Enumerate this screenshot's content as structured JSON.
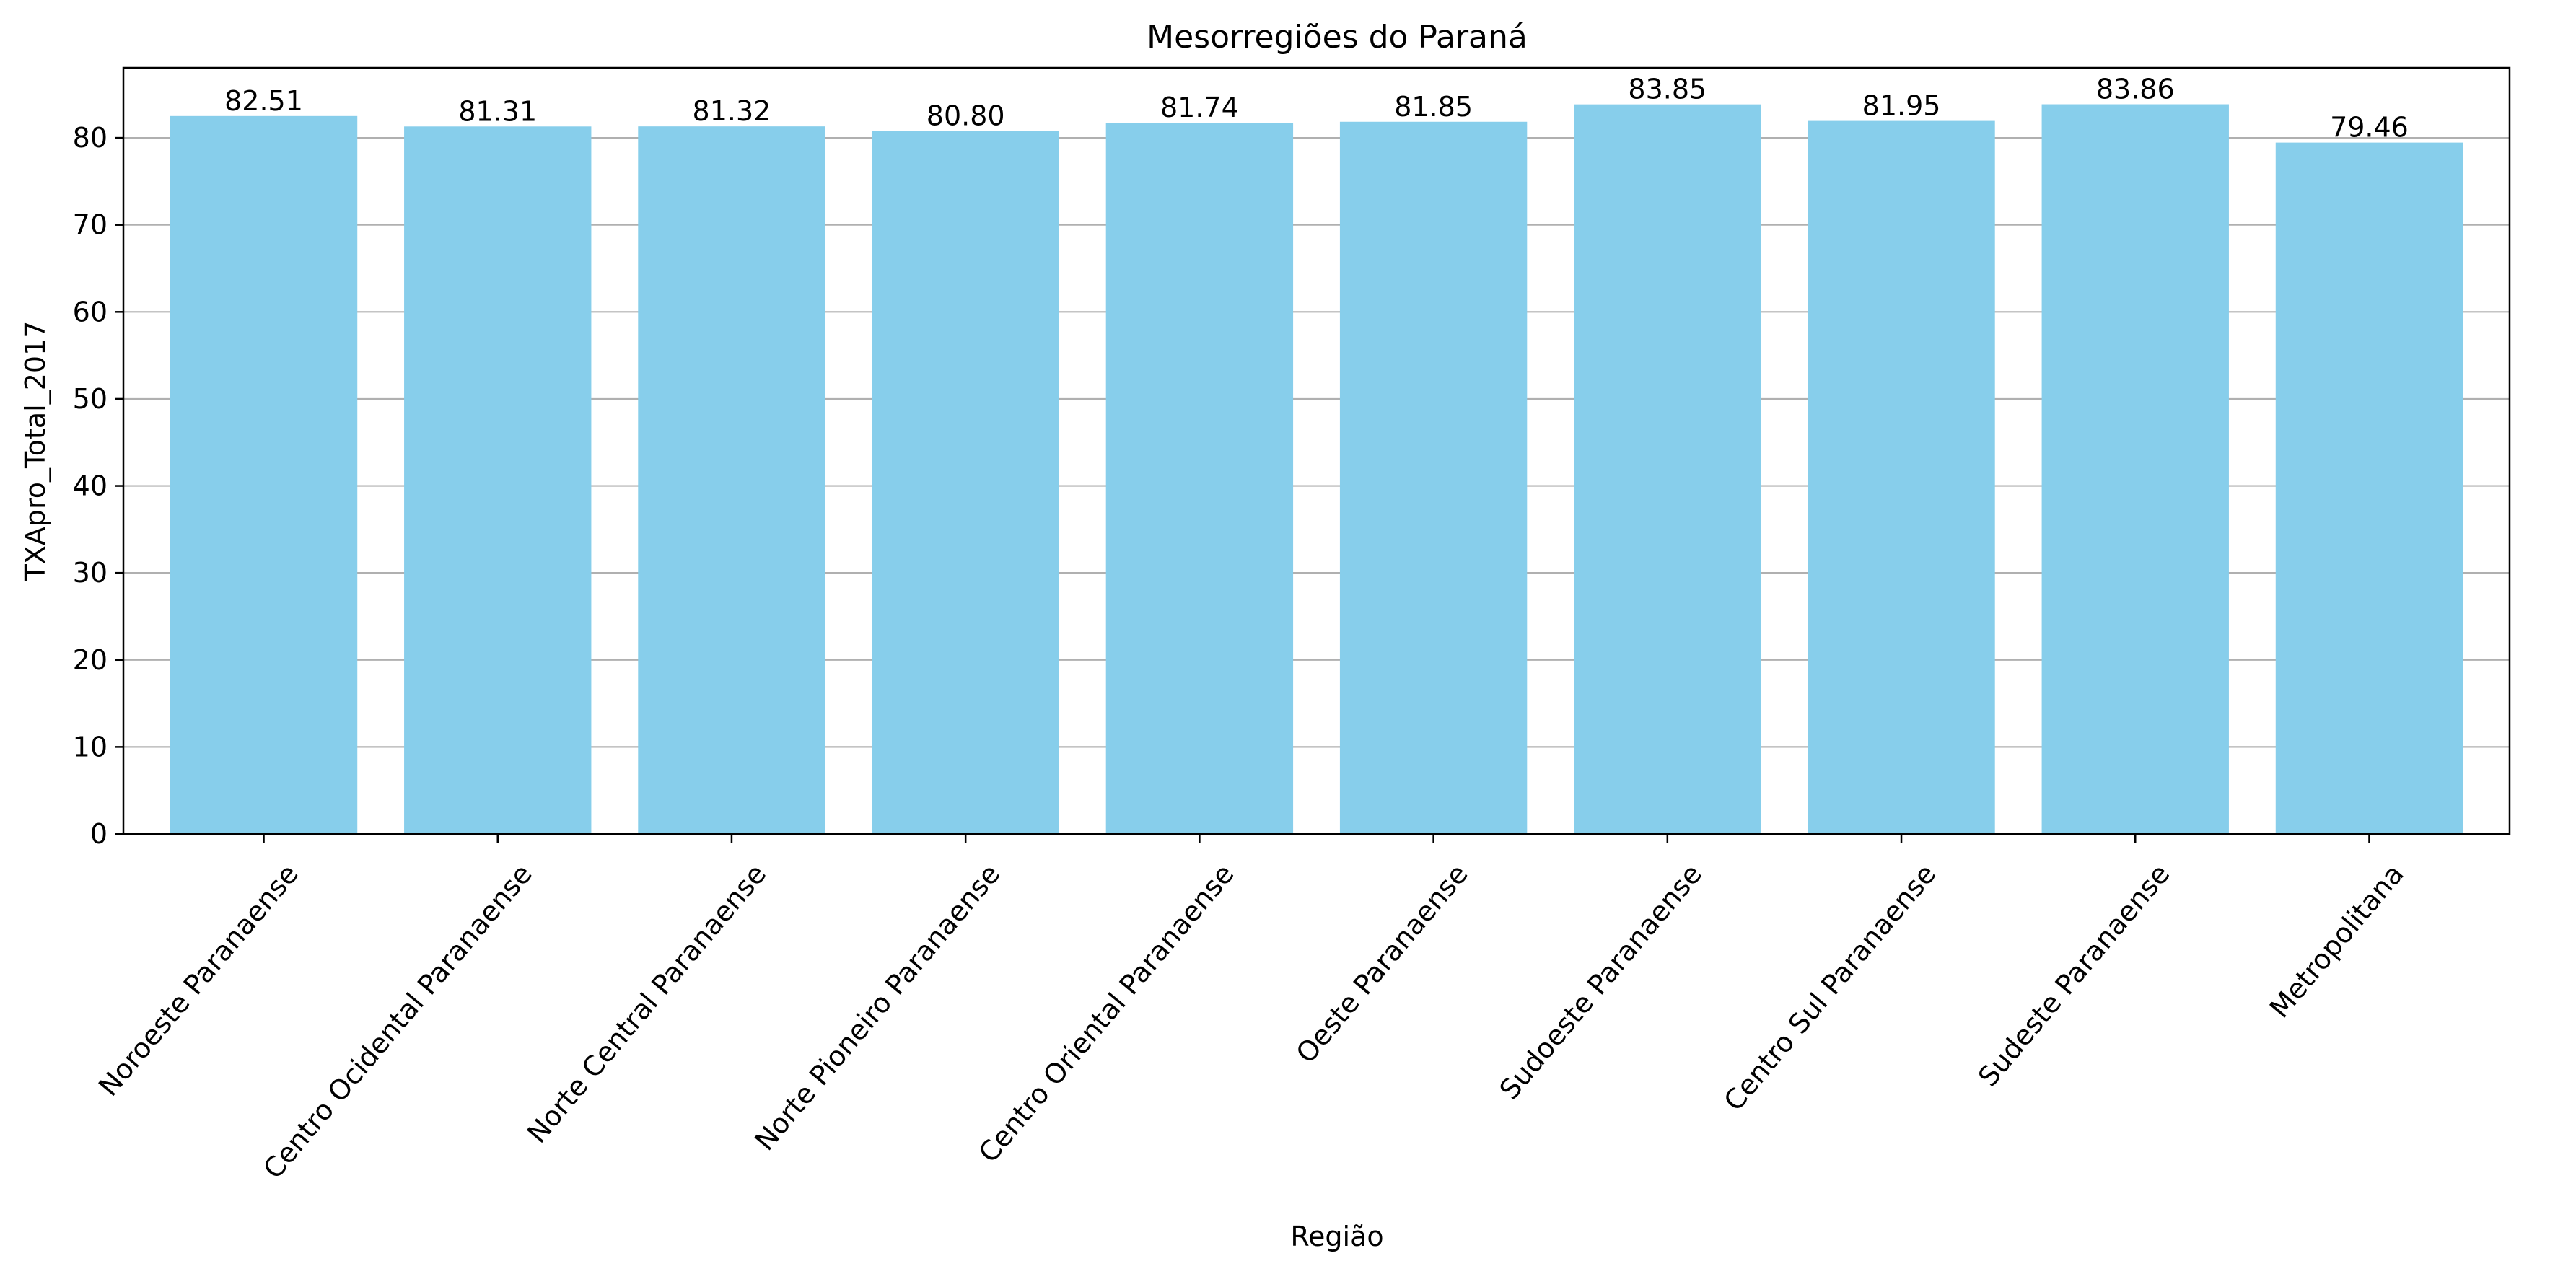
{
  "chart_data": {
    "type": "bar",
    "title": "Mesorregiões do Paraná",
    "xlabel": "Região",
    "ylabel": "TXApro_Total_2017",
    "categories": [
      "Noroeste Paranaense",
      "Centro Ocidental Paranaense",
      "Norte Central Paranaense",
      "Norte Pioneiro Paranaense",
      "Centro Oriental Paranaense",
      "Oeste Paranaense",
      "Sudoeste Paranaense",
      "Centro Sul Paranaense",
      "Sudeste Paranaense",
      "Metropolitana"
    ],
    "values": [
      82.51,
      81.31,
      81.32,
      80.8,
      81.74,
      81.85,
      83.85,
      81.95,
      83.86,
      79.46
    ],
    "value_labels": [
      "82.51",
      "81.31",
      "81.32",
      "80.80",
      "81.74",
      "81.85",
      "83.85",
      "81.95",
      "83.86",
      "79.46"
    ],
    "yticks": [
      0,
      10,
      20,
      30,
      40,
      50,
      60,
      70,
      80
    ],
    "ytick_labels": [
      "0",
      "10",
      "20",
      "30",
      "40",
      "50",
      "60",
      "70",
      "80"
    ],
    "ylim": [
      0,
      88.05
    ],
    "grid": "y",
    "bar_color": "#87ceeb"
  }
}
